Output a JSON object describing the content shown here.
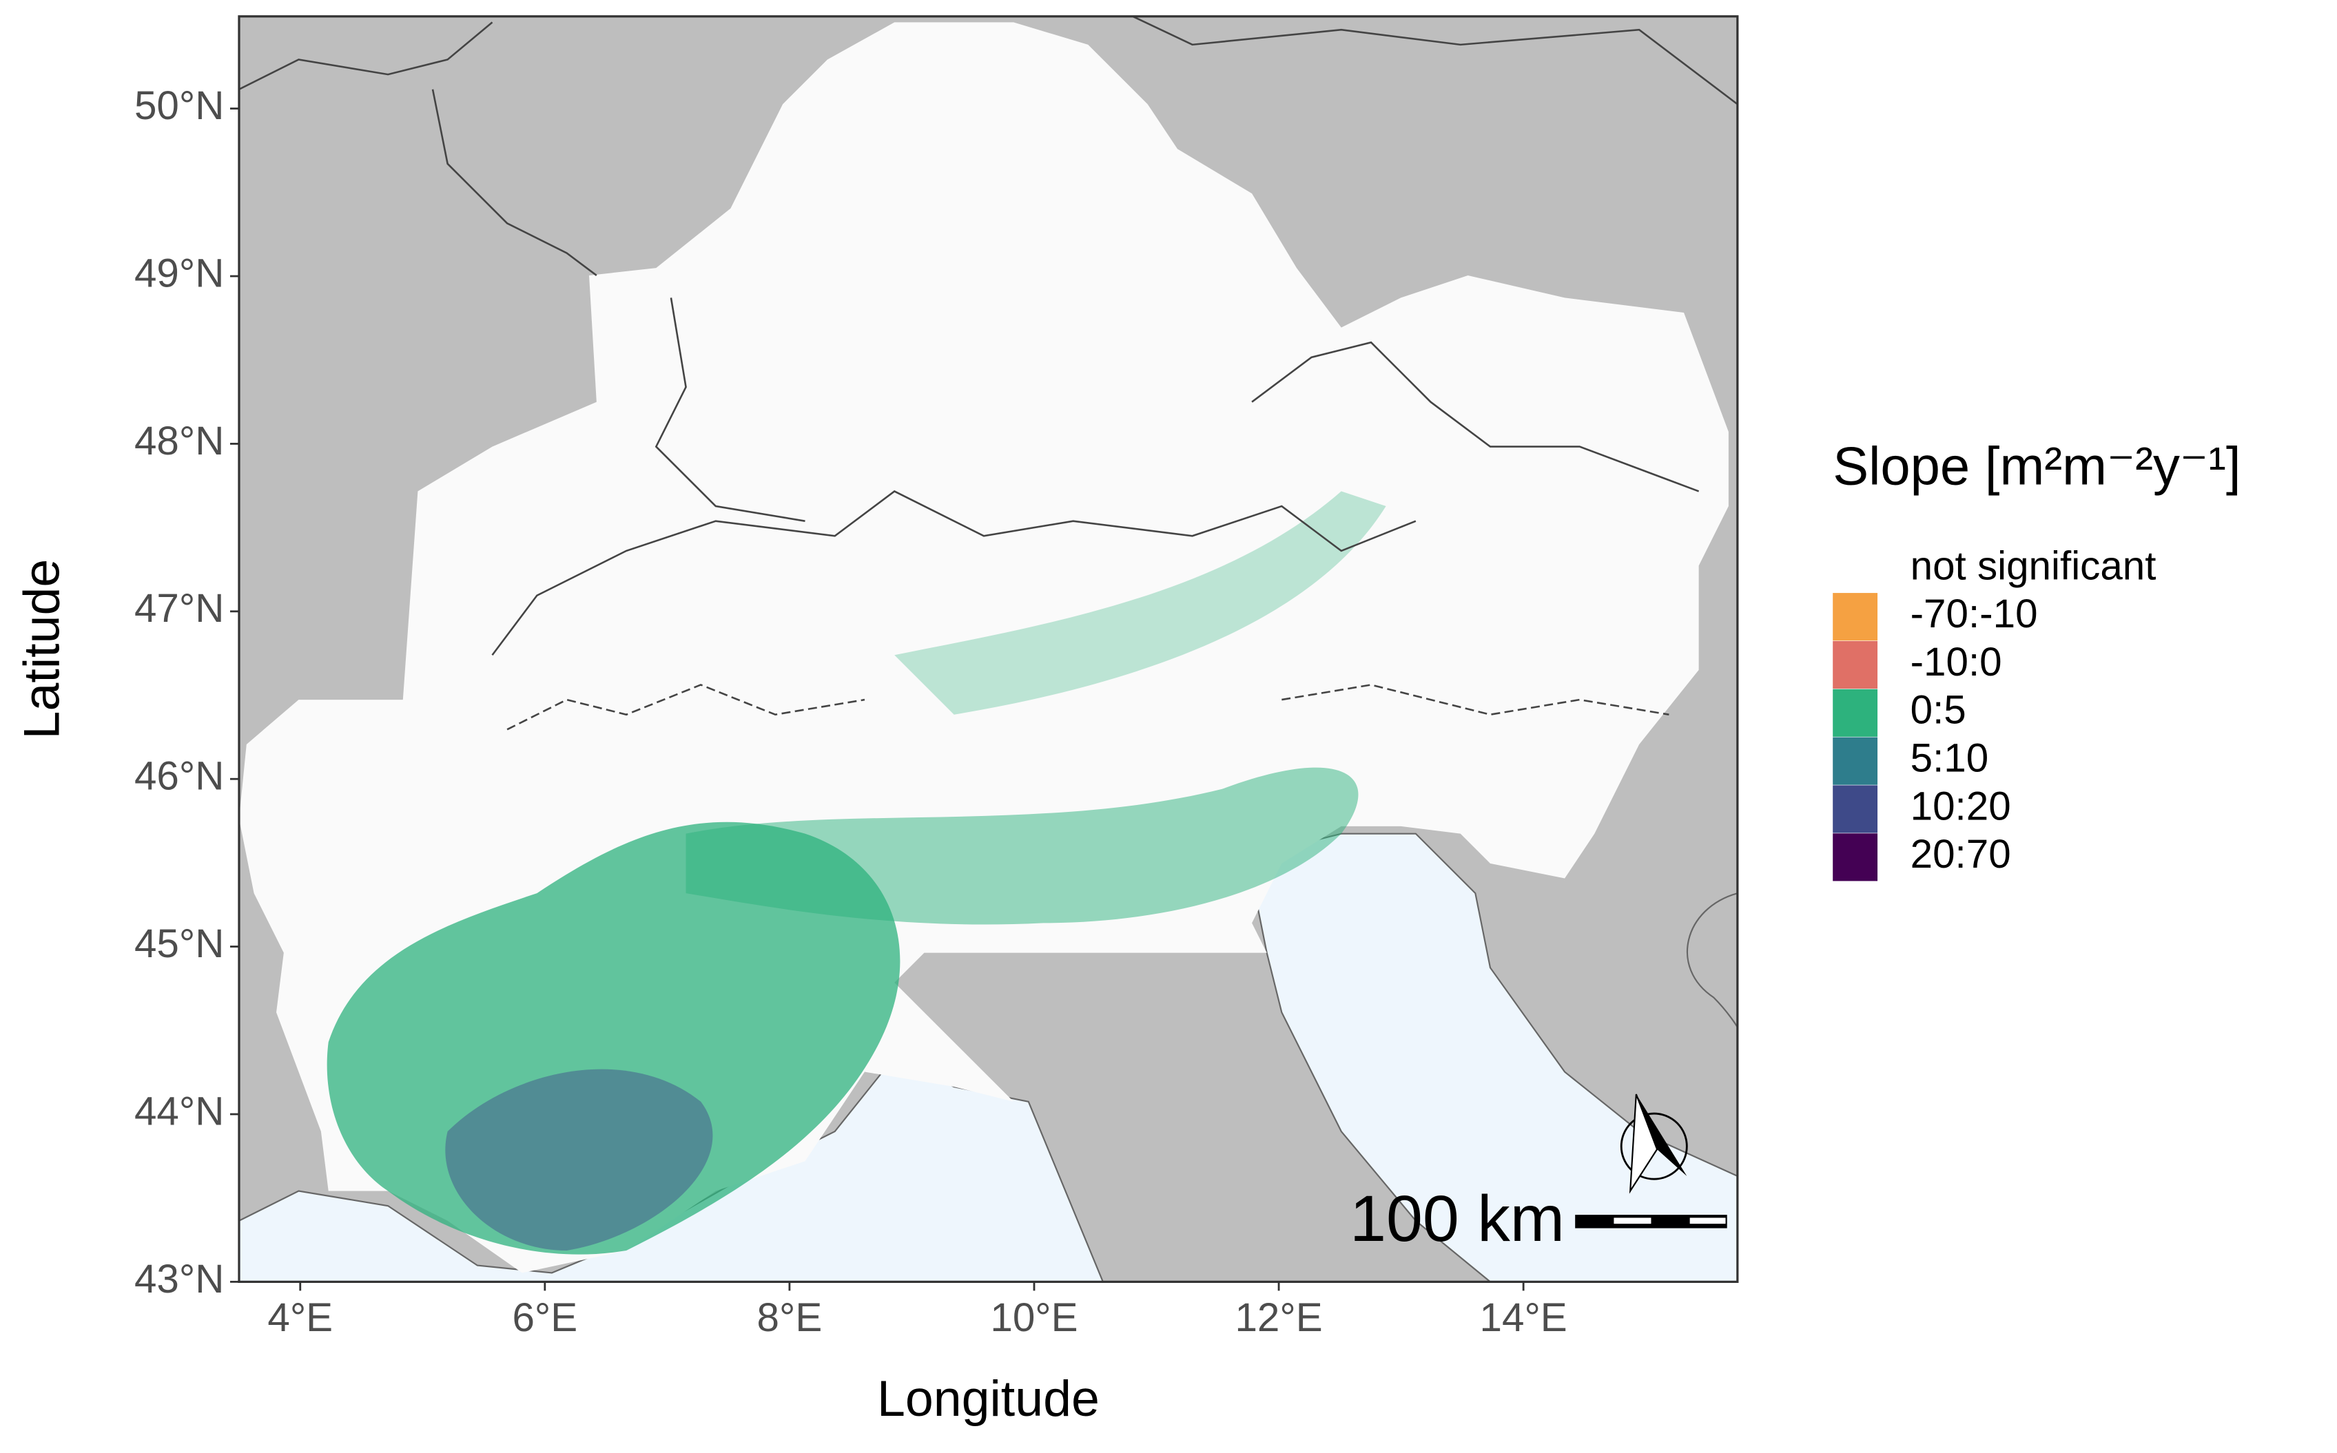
{
  "chart_data": {
    "type": "map",
    "xlabel": "Longitude",
    "ylabel": "Latitude",
    "xlim": [
      3.5,
      15.75
    ],
    "ylim": [
      43,
      50.55
    ],
    "xticks": [
      {
        "value": 4,
        "label": "4°E"
      },
      {
        "value": 6,
        "label": "6°E"
      },
      {
        "value": 8,
        "label": "8°E"
      },
      {
        "value": 10,
        "label": "10°E"
      },
      {
        "value": 12,
        "label": "12°E"
      },
      {
        "value": 14,
        "label": "14°E"
      }
    ],
    "yticks": [
      {
        "value": 43,
        "label": "43°N"
      },
      {
        "value": 44,
        "label": "44°N"
      },
      {
        "value": 45,
        "label": "45°N"
      },
      {
        "value": 46,
        "label": "46°N"
      },
      {
        "value": 47,
        "label": "47°N"
      },
      {
        "value": 48,
        "label": "48°N"
      },
      {
        "value": 49,
        "label": "49°N"
      },
      {
        "value": 50,
        "label": "50°N"
      }
    ],
    "legend": {
      "title": "Slope [m²m⁻²y⁻¹]",
      "items": [
        {
          "label": "not significant",
          "color": "#ffffff"
        },
        {
          "label": "-70:-10",
          "color": "#f5a142"
        },
        {
          "label": "-10:0",
          "color": "#e07066"
        },
        {
          "label": "0:5",
          "color": "#2db27d"
        },
        {
          "label": "5:10",
          "color": "#2e7d8c"
        },
        {
          "label": "10:20",
          "color": "#3e4a89"
        },
        {
          "label": "20:70",
          "color": "#440154"
        }
      ]
    },
    "scale_bar": "100 km"
  }
}
